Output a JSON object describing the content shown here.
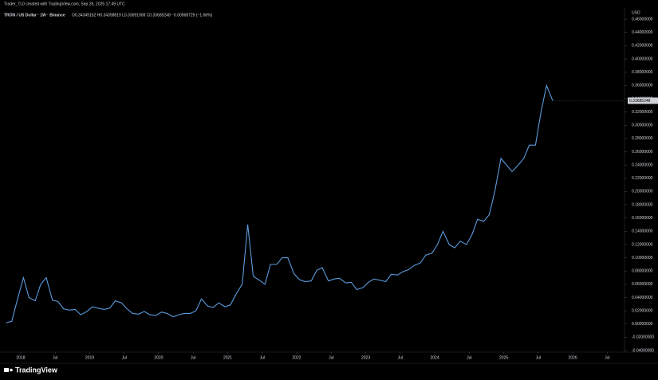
{
  "header": "Trader_TL0 created with TradingView.com, Sep 26, 2025 17:49 UTC",
  "footer": "TradingView",
  "chart_data": {
    "type": "line",
    "title": "TRON / US Dollar · 1W · Binance",
    "ohlc_legend": "O0.34349152 H0.34398819 L0.33091908 C0.33685248 −0.00568729 (−1.66%)",
    "currency": "USD",
    "last_price_label": "0.33685248",
    "color": "#5b9bdc",
    "grid": false,
    "x": [
      2017.79,
      2017.87,
      2017.96,
      2018.04,
      2018.12,
      2018.21,
      2018.29,
      2018.37,
      2018.46,
      2018.54,
      2018.62,
      2018.71,
      2018.79,
      2018.87,
      2018.96,
      2019.04,
      2019.12,
      2019.21,
      2019.29,
      2019.37,
      2019.46,
      2019.54,
      2019.62,
      2019.71,
      2019.79,
      2019.87,
      2019.96,
      2020.04,
      2020.12,
      2020.21,
      2020.29,
      2020.37,
      2020.46,
      2020.54,
      2020.62,
      2020.71,
      2020.79,
      2020.87,
      2020.96,
      2021.04,
      2021.12,
      2021.21,
      2021.29,
      2021.37,
      2021.46,
      2021.54,
      2021.62,
      2021.71,
      2021.79,
      2021.87,
      2021.96,
      2022.04,
      2022.12,
      2022.21,
      2022.29,
      2022.37,
      2022.46,
      2022.54,
      2022.62,
      2022.71,
      2022.79,
      2022.87,
      2022.96,
      2023.04,
      2023.12,
      2023.21,
      2023.29,
      2023.37,
      2023.46,
      2023.54,
      2023.62,
      2023.71,
      2023.79,
      2023.87,
      2023.96,
      2024.04,
      2024.12,
      2024.21,
      2024.29,
      2024.37,
      2024.46,
      2024.54,
      2024.62,
      2024.71,
      2024.79,
      2024.87,
      2024.96,
      2025.04,
      2025.12,
      2025.21,
      2025.29,
      2025.37,
      2025.46,
      2025.54,
      2025.62,
      2025.71
    ],
    "values": [
      0.002,
      0.004,
      0.04,
      0.07,
      0.04,
      0.035,
      0.06,
      0.07,
      0.036,
      0.034,
      0.023,
      0.021,
      0.022,
      0.014,
      0.019,
      0.026,
      0.024,
      0.022,
      0.024,
      0.035,
      0.032,
      0.023,
      0.016,
      0.015,
      0.019,
      0.014,
      0.013,
      0.018,
      0.016,
      0.011,
      0.014,
      0.016,
      0.016,
      0.02,
      0.038,
      0.027,
      0.025,
      0.032,
      0.026,
      0.029,
      0.045,
      0.06,
      0.15,
      0.072,
      0.066,
      0.06,
      0.09,
      0.09,
      0.1,
      0.1,
      0.076,
      0.067,
      0.064,
      0.065,
      0.081,
      0.085,
      0.065,
      0.068,
      0.069,
      0.062,
      0.063,
      0.052,
      0.055,
      0.063,
      0.068,
      0.066,
      0.064,
      0.075,
      0.074,
      0.079,
      0.082,
      0.089,
      0.092,
      0.104,
      0.107,
      0.12,
      0.14,
      0.12,
      0.115,
      0.125,
      0.12,
      0.135,
      0.158,
      0.155,
      0.165,
      0.2,
      0.25,
      0.24,
      0.23,
      0.24,
      0.25,
      0.27,
      0.27,
      0.32,
      0.36,
      0.337
    ],
    "xlim": [
      2017.7,
      2026.75
    ],
    "xticks": [
      {
        "value": 2018,
        "label": "2018"
      },
      {
        "value": 2018.5,
        "label": "Jul"
      },
      {
        "value": 2019,
        "label": "2019"
      },
      {
        "value": 2019.5,
        "label": "Jul"
      },
      {
        "value": 2020,
        "label": "2020"
      },
      {
        "value": 2020.5,
        "label": "Jul"
      },
      {
        "value": 2021,
        "label": "2021"
      },
      {
        "value": 2021.5,
        "label": "Jul"
      },
      {
        "value": 2022,
        "label": "2022"
      },
      {
        "value": 2022.5,
        "label": "Jul"
      },
      {
        "value": 2023,
        "label": "2023"
      },
      {
        "value": 2023.5,
        "label": "Jul"
      },
      {
        "value": 2024,
        "label": "2024"
      },
      {
        "value": 2024.5,
        "label": "Jul"
      },
      {
        "value": 2025,
        "label": "2025"
      },
      {
        "value": 2025.5,
        "label": "Jul"
      },
      {
        "value": 2026,
        "label": "2026"
      },
      {
        "value": 2026.5,
        "label": "Jul"
      }
    ],
    "ylim": [
      -0.046,
      0.477
    ],
    "yticks": [
      {
        "value": 0.46,
        "label": "0.46000000"
      },
      {
        "value": 0.44,
        "label": "0.44000000"
      },
      {
        "value": 0.42,
        "label": "0.42000000"
      },
      {
        "value": 0.4,
        "label": "0.40000000"
      },
      {
        "value": 0.38,
        "label": "0.38000000"
      },
      {
        "value": 0.36,
        "label": "0.36000000"
      },
      {
        "value": 0.34,
        "label": "0.34000000"
      },
      {
        "value": 0.32,
        "label": "0.32000000"
      },
      {
        "value": 0.3,
        "label": "0.30000000"
      },
      {
        "value": 0.28,
        "label": "0.28000000"
      },
      {
        "value": 0.26,
        "label": "0.26000000"
      },
      {
        "value": 0.24,
        "label": "0.24000000"
      },
      {
        "value": 0.22,
        "label": "0.22000000"
      },
      {
        "value": 0.2,
        "label": "0.20000000"
      },
      {
        "value": 0.18,
        "label": "0.18000000"
      },
      {
        "value": 0.16,
        "label": "0.16000000"
      },
      {
        "value": 0.14,
        "label": "0.14000000"
      },
      {
        "value": 0.12,
        "label": "0.12000000"
      },
      {
        "value": 0.1,
        "label": "0.10000000"
      },
      {
        "value": 0.08,
        "label": "0.08000000"
      },
      {
        "value": 0.06,
        "label": "0.06000000"
      },
      {
        "value": 0.04,
        "label": "0.04000000"
      },
      {
        "value": 0.02,
        "label": "0.02000000"
      },
      {
        "value": 0,
        "label": "0.00000000"
      },
      {
        "value": -0.02,
        "label": "-0.02000000"
      },
      {
        "value": -0.04,
        "label": "-0.04000000"
      }
    ]
  }
}
